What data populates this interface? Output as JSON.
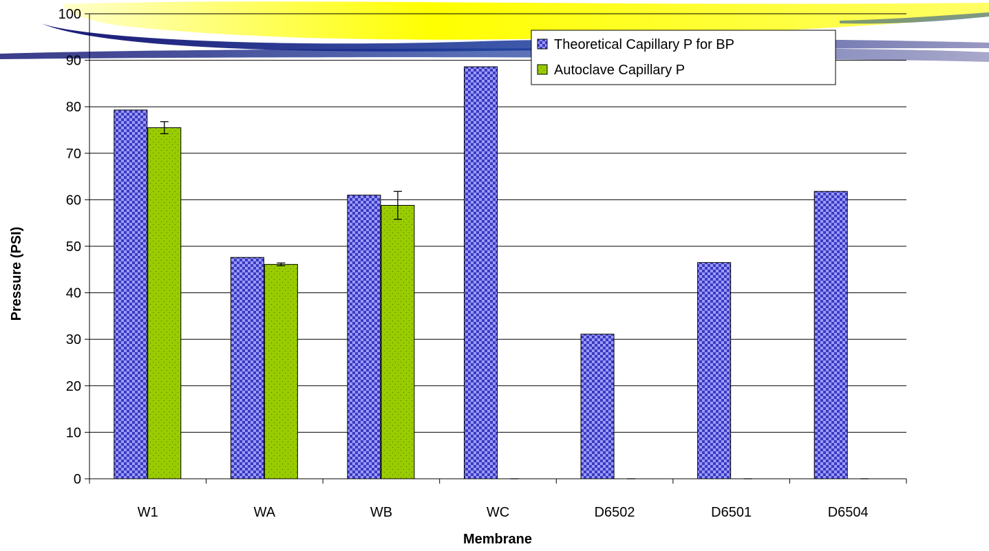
{
  "chart_data": {
    "type": "bar",
    "xlabel": "Membrane",
    "ylabel": "Pressure (PSI)",
    "ylim": [
      0,
      100
    ],
    "yticks": [
      0,
      10,
      20,
      30,
      40,
      50,
      60,
      70,
      80,
      90,
      100
    ],
    "categories": [
      "W1",
      "WA",
      "WB",
      "WC",
      "D6502",
      "D6501",
      "D6504"
    ],
    "series": [
      {
        "name": "Theoretical Capillary P for BP",
        "values": [
          79.3,
          47.6,
          61.0,
          88.6,
          31.1,
          46.5,
          61.8
        ],
        "color": "#5b5bd6",
        "pattern": "checker"
      },
      {
        "name": "Autoclave Capillary P",
        "values": [
          75.5,
          46.1,
          58.8,
          0,
          0,
          0,
          0
        ],
        "errors": [
          1.3,
          0.3,
          3.0,
          null,
          null,
          null,
          null
        ],
        "color": "#99cc00",
        "pattern": "dots"
      }
    ],
    "grid": true,
    "legend_position": "top-right"
  }
}
